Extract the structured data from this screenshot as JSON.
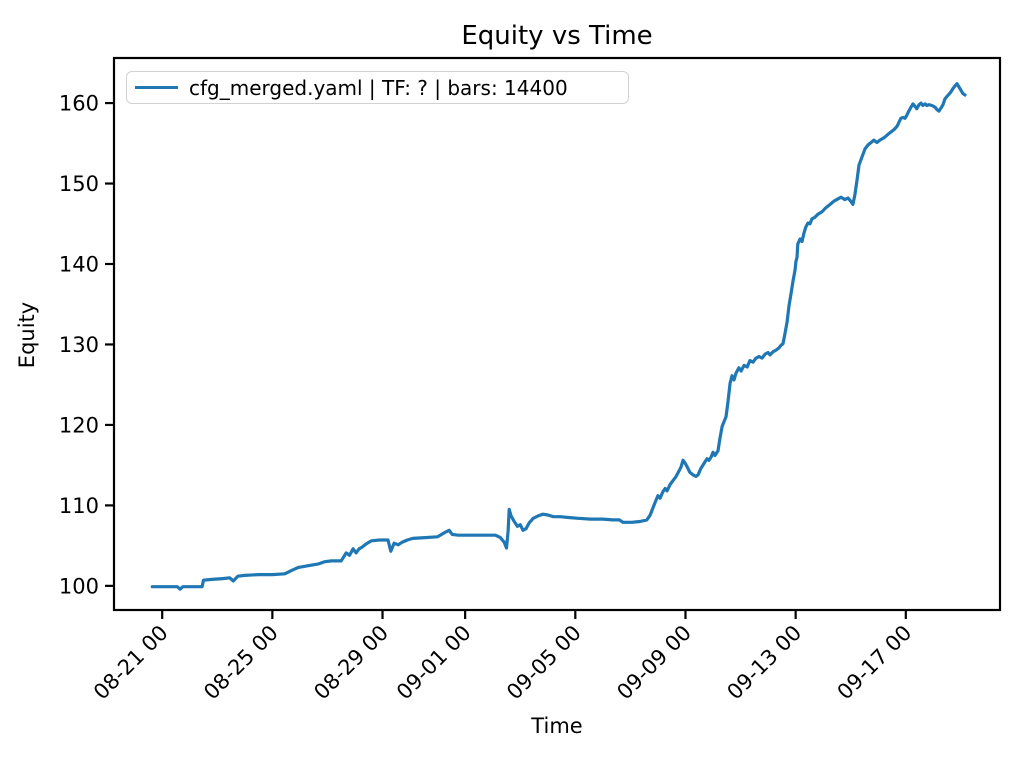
{
  "figure": {
    "background": "#ffffff",
    "text_color": "#000000"
  },
  "chart_data": {
    "type": "line",
    "title": "Equity vs Time",
    "xlabel": "Time",
    "ylabel": "Equity",
    "legend": [
      "cfg_merged.yaml | TF: ? | bars: 14400"
    ],
    "legend_position": "upper left",
    "line_color": "#1f77b4",
    "grid": false,
    "x_unit": "days relative to 08-21 00",
    "xlim": [
      -1.75,
      30.42
    ],
    "ylim": [
      97.0,
      165.6
    ],
    "x_ticks": [
      {
        "day": 0,
        "label": "08-21 00"
      },
      {
        "day": 4,
        "label": "08-25 00"
      },
      {
        "day": 8,
        "label": "08-29 00"
      },
      {
        "day": 11,
        "label": "09-01 00"
      },
      {
        "day": 15,
        "label": "09-05 00"
      },
      {
        "day": 19,
        "label": "09-09 00"
      },
      {
        "day": 23,
        "label": "09-13 00"
      },
      {
        "day": 27,
        "label": "09-17 00"
      }
    ],
    "y_ticks": [
      100,
      110,
      120,
      130,
      140,
      150,
      160
    ],
    "series": [
      {
        "name": "cfg_merged.yaml | TF: ? | bars: 14400",
        "points": [
          [
            -0.36,
            99.9
          ],
          [
            -0.1,
            99.9
          ],
          [
            0.3,
            99.9
          ],
          [
            0.55,
            99.9
          ],
          [
            0.65,
            99.6
          ],
          [
            0.75,
            99.9
          ],
          [
            1.1,
            99.9
          ],
          [
            1.45,
            99.9
          ],
          [
            1.5,
            100.7
          ],
          [
            1.8,
            100.8
          ],
          [
            2.2,
            100.9
          ],
          [
            2.45,
            101.0
          ],
          [
            2.58,
            100.6
          ],
          [
            2.75,
            101.2
          ],
          [
            3.0,
            101.3
          ],
          [
            3.5,
            101.4
          ],
          [
            4.0,
            101.4
          ],
          [
            4.45,
            101.5
          ],
          [
            4.75,
            102.0
          ],
          [
            4.95,
            102.3
          ],
          [
            5.3,
            102.5
          ],
          [
            5.65,
            102.7
          ],
          [
            5.9,
            103.0
          ],
          [
            6.15,
            103.1
          ],
          [
            6.5,
            103.1
          ],
          [
            6.68,
            104.1
          ],
          [
            6.8,
            103.8
          ],
          [
            6.93,
            104.6
          ],
          [
            7.04,
            104.1
          ],
          [
            7.15,
            104.6
          ],
          [
            7.26,
            104.8
          ],
          [
            7.4,
            105.2
          ],
          [
            7.6,
            105.6
          ],
          [
            7.9,
            105.7
          ],
          [
            8.2,
            105.7
          ],
          [
            8.3,
            104.3
          ],
          [
            8.42,
            105.3
          ],
          [
            8.57,
            105.1
          ],
          [
            8.7,
            105.4
          ],
          [
            8.9,
            105.7
          ],
          [
            9.1,
            105.9
          ],
          [
            9.55,
            106.0
          ],
          [
            10.0,
            106.1
          ],
          [
            10.3,
            106.7
          ],
          [
            10.42,
            106.9
          ],
          [
            10.53,
            106.4
          ],
          [
            10.75,
            106.3
          ],
          [
            11.2,
            106.3
          ],
          [
            11.65,
            106.3
          ],
          [
            12.1,
            106.3
          ],
          [
            12.28,
            106.0
          ],
          [
            12.42,
            105.4
          ],
          [
            12.5,
            104.7
          ],
          [
            12.56,
            106.8
          ],
          [
            12.6,
            109.5
          ],
          [
            12.67,
            108.7
          ],
          [
            12.78,
            108.0
          ],
          [
            12.9,
            107.4
          ],
          [
            13.0,
            107.6
          ],
          [
            13.1,
            106.9
          ],
          [
            13.21,
            107.1
          ],
          [
            13.32,
            107.8
          ],
          [
            13.47,
            108.4
          ],
          [
            13.65,
            108.7
          ],
          [
            13.83,
            108.9
          ],
          [
            14.0,
            108.8
          ],
          [
            14.2,
            108.6
          ],
          [
            14.45,
            108.6
          ],
          [
            14.75,
            108.5
          ],
          [
            15.1,
            108.4
          ],
          [
            15.55,
            108.3
          ],
          [
            16.0,
            108.3
          ],
          [
            16.35,
            108.2
          ],
          [
            16.6,
            108.2
          ],
          [
            16.73,
            107.9
          ],
          [
            17.05,
            107.9
          ],
          [
            17.35,
            108.0
          ],
          [
            17.6,
            108.2
          ],
          [
            17.72,
            108.8
          ],
          [
            17.82,
            109.7
          ],
          [
            17.9,
            110.4
          ],
          [
            18.0,
            111.2
          ],
          [
            18.08,
            110.9
          ],
          [
            18.18,
            111.7
          ],
          [
            18.26,
            112.1
          ],
          [
            18.33,
            111.8
          ],
          [
            18.44,
            112.6
          ],
          [
            18.55,
            113.1
          ],
          [
            18.66,
            113.6
          ],
          [
            18.77,
            114.3
          ],
          [
            18.84,
            114.8
          ],
          [
            18.91,
            115.6
          ],
          [
            18.98,
            115.3
          ],
          [
            19.06,
            114.8
          ],
          [
            19.16,
            114.1
          ],
          [
            19.27,
            113.8
          ],
          [
            19.38,
            113.6
          ],
          [
            19.46,
            113.8
          ],
          [
            19.56,
            114.6
          ],
          [
            19.67,
            115.2
          ],
          [
            19.78,
            115.8
          ],
          [
            19.85,
            115.6
          ],
          [
            19.93,
            116.0
          ],
          [
            20.0,
            116.6
          ],
          [
            20.07,
            116.2
          ],
          [
            20.18,
            116.8
          ],
          [
            20.25,
            118.3
          ],
          [
            20.33,
            119.8
          ],
          [
            20.4,
            120.4
          ],
          [
            20.47,
            121.0
          ],
          [
            20.54,
            122.8
          ],
          [
            20.62,
            125.2
          ],
          [
            20.69,
            126.1
          ],
          [
            20.76,
            125.6
          ],
          [
            20.83,
            126.4
          ],
          [
            20.94,
            127.1
          ],
          [
            21.02,
            126.7
          ],
          [
            21.13,
            127.4
          ],
          [
            21.24,
            127.2
          ],
          [
            21.34,
            128.0
          ],
          [
            21.45,
            127.8
          ],
          [
            21.56,
            128.3
          ],
          [
            21.67,
            128.5
          ],
          [
            21.78,
            128.3
          ],
          [
            21.89,
            128.8
          ],
          [
            22.0,
            129.0
          ],
          [
            22.07,
            128.7
          ],
          [
            22.18,
            129.1
          ],
          [
            22.29,
            129.3
          ],
          [
            22.4,
            129.6
          ],
          [
            22.47,
            129.9
          ],
          [
            22.54,
            130.1
          ],
          [
            22.61,
            131.3
          ],
          [
            22.69,
            132.8
          ],
          [
            22.76,
            134.8
          ],
          [
            22.83,
            136.3
          ],
          [
            22.9,
            137.8
          ],
          [
            22.98,
            139.3
          ],
          [
            23.01,
            140.3
          ],
          [
            23.05,
            140.8
          ],
          [
            23.08,
            142.5
          ],
          [
            23.16,
            143.1
          ],
          [
            23.23,
            142.8
          ],
          [
            23.3,
            143.8
          ],
          [
            23.37,
            144.6
          ],
          [
            23.45,
            145.1
          ],
          [
            23.52,
            145.0
          ],
          [
            23.59,
            145.6
          ],
          [
            23.7,
            145.8
          ],
          [
            23.81,
            146.2
          ],
          [
            23.96,
            146.5
          ],
          [
            24.1,
            147.0
          ],
          [
            24.25,
            147.4
          ],
          [
            24.39,
            147.8
          ],
          [
            24.54,
            148.1
          ],
          [
            24.65,
            148.3
          ],
          [
            24.79,
            148.0
          ],
          [
            24.9,
            148.2
          ],
          [
            25.0,
            147.8
          ],
          [
            25.08,
            147.4
          ],
          [
            25.15,
            148.6
          ],
          [
            25.23,
            150.5
          ],
          [
            25.3,
            152.3
          ],
          [
            25.41,
            153.3
          ],
          [
            25.52,
            154.3
          ],
          [
            25.63,
            154.8
          ],
          [
            25.74,
            155.1
          ],
          [
            25.84,
            155.4
          ],
          [
            25.95,
            155.1
          ],
          [
            26.06,
            155.4
          ],
          [
            26.21,
            155.7
          ],
          [
            26.35,
            156.1
          ],
          [
            26.46,
            156.4
          ],
          [
            26.57,
            156.7
          ],
          [
            26.68,
            157.1
          ],
          [
            26.75,
            157.6
          ],
          [
            26.82,
            158.1
          ],
          [
            26.9,
            158.2
          ],
          [
            26.97,
            158.1
          ],
          [
            27.04,
            158.5
          ],
          [
            27.11,
            159.0
          ],
          [
            27.19,
            159.5
          ],
          [
            27.26,
            159.9
          ],
          [
            27.33,
            159.6
          ],
          [
            27.4,
            159.3
          ],
          [
            27.48,
            159.8
          ],
          [
            27.55,
            160.0
          ],
          [
            27.62,
            159.7
          ],
          [
            27.7,
            159.9
          ],
          [
            27.77,
            159.7
          ],
          [
            27.84,
            159.8
          ],
          [
            27.95,
            159.7
          ],
          [
            28.06,
            159.5
          ],
          [
            28.13,
            159.2
          ],
          [
            28.2,
            159.0
          ],
          [
            28.28,
            159.4
          ],
          [
            28.35,
            159.8
          ],
          [
            28.42,
            160.5
          ],
          [
            28.49,
            160.8
          ],
          [
            28.57,
            161.1
          ],
          [
            28.64,
            161.4
          ],
          [
            28.71,
            161.8
          ],
          [
            28.78,
            162.1
          ],
          [
            28.86,
            162.4
          ],
          [
            28.93,
            162.0
          ],
          [
            29.0,
            161.6
          ],
          [
            29.07,
            161.2
          ],
          [
            29.15,
            161.0
          ]
        ]
      }
    ]
  }
}
